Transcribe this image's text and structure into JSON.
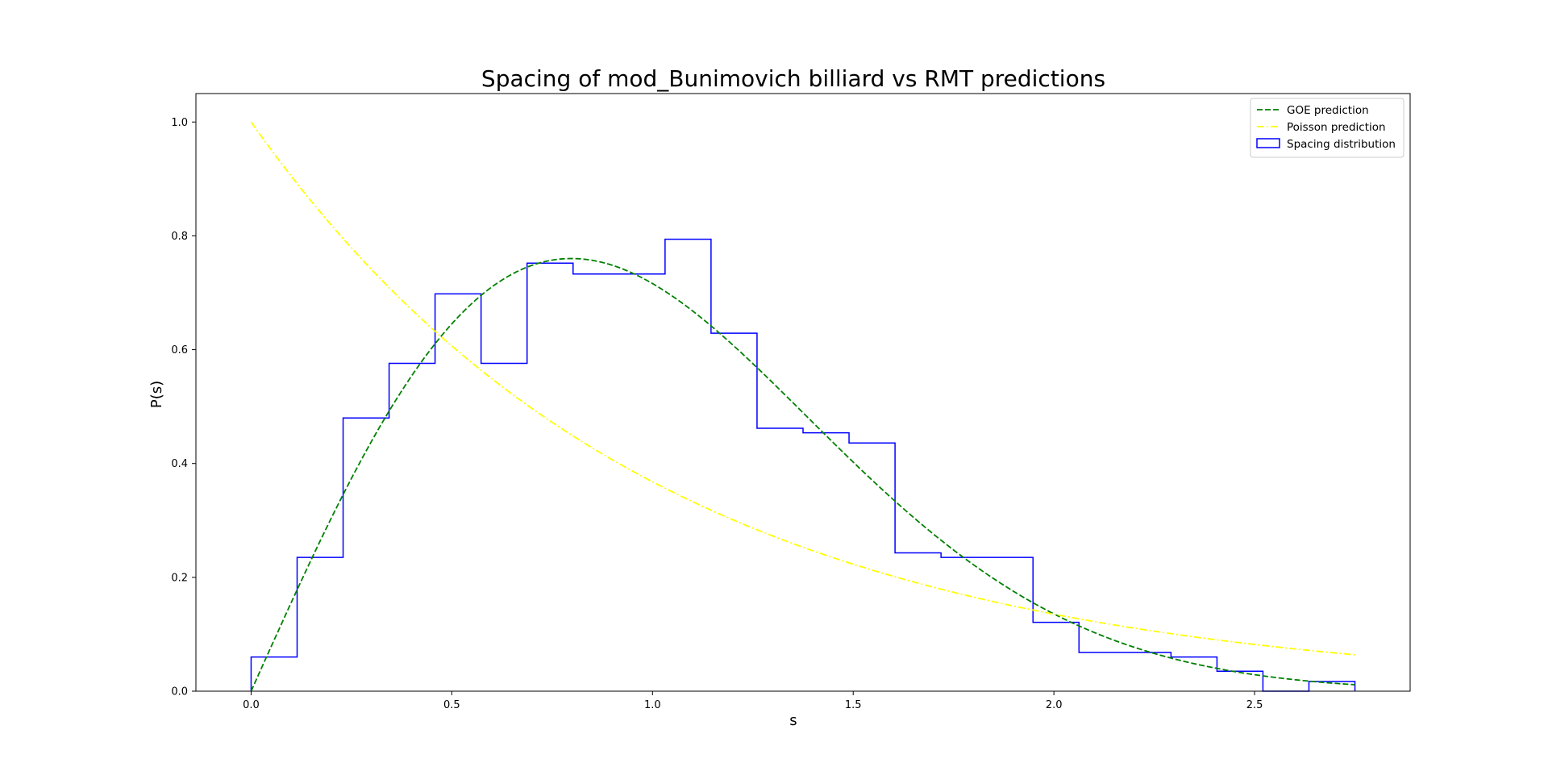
{
  "chart_data": {
    "type": "line",
    "title": "Spacing of mod_Bunimovich billiard vs RMT predictions",
    "xlabel": "s",
    "ylabel": "P(s)",
    "xlim": [
      -0.1375,
      2.8875
    ],
    "ylim": [
      0,
      1.05
    ],
    "xticks": [
      0.0,
      0.5,
      1.0,
      1.5,
      2.0,
      2.5
    ],
    "xtick_labels": [
      "0.0",
      "0.5",
      "1.0",
      "1.5",
      "2.0",
      "2.5"
    ],
    "yticks": [
      0.0,
      0.2,
      0.4,
      0.6,
      0.8,
      1.0
    ],
    "ytick_labels": [
      "0.0",
      "0.2",
      "0.4",
      "0.6",
      "0.8",
      "1.0"
    ],
    "grid": false,
    "legend_position": "top-right",
    "series": [
      {
        "name": "GOE prediction",
        "kind": "line",
        "style": "dashed",
        "color": "#008000",
        "formula": "(pi/2) * s * exp(-pi * s^2 / 4)",
        "s_range": [
          0.0,
          2.75
        ]
      },
      {
        "name": "Poisson prediction",
        "kind": "line",
        "style": "dashdot",
        "color": "#ffff00",
        "formula": "exp(-s)",
        "s_range": [
          0.0,
          2.75
        ]
      },
      {
        "name": "Spacing distribution",
        "kind": "step-histogram",
        "color": "#0000ff",
        "bin_edges": [
          0.0,
          0.1146,
          0.2292,
          0.3438,
          0.4583,
          0.5729,
          0.6875,
          0.8021,
          0.9167,
          1.0313,
          1.1458,
          1.2604,
          1.375,
          1.4896,
          1.6042,
          1.7188,
          1.8333,
          1.9479,
          2.0625,
          2.1771,
          2.2917,
          2.4063,
          2.5208,
          2.6354,
          2.75
        ],
        "values": [
          0.06,
          0.235,
          0.48,
          0.576,
          0.698,
          0.576,
          0.752,
          0.733,
          0.733,
          0.794,
          0.629,
          0.462,
          0.454,
          0.436,
          0.243,
          0.235,
          0.235,
          0.121,
          0.068,
          0.068,
          0.06,
          0.035,
          0.0,
          0.017
        ]
      }
    ]
  }
}
